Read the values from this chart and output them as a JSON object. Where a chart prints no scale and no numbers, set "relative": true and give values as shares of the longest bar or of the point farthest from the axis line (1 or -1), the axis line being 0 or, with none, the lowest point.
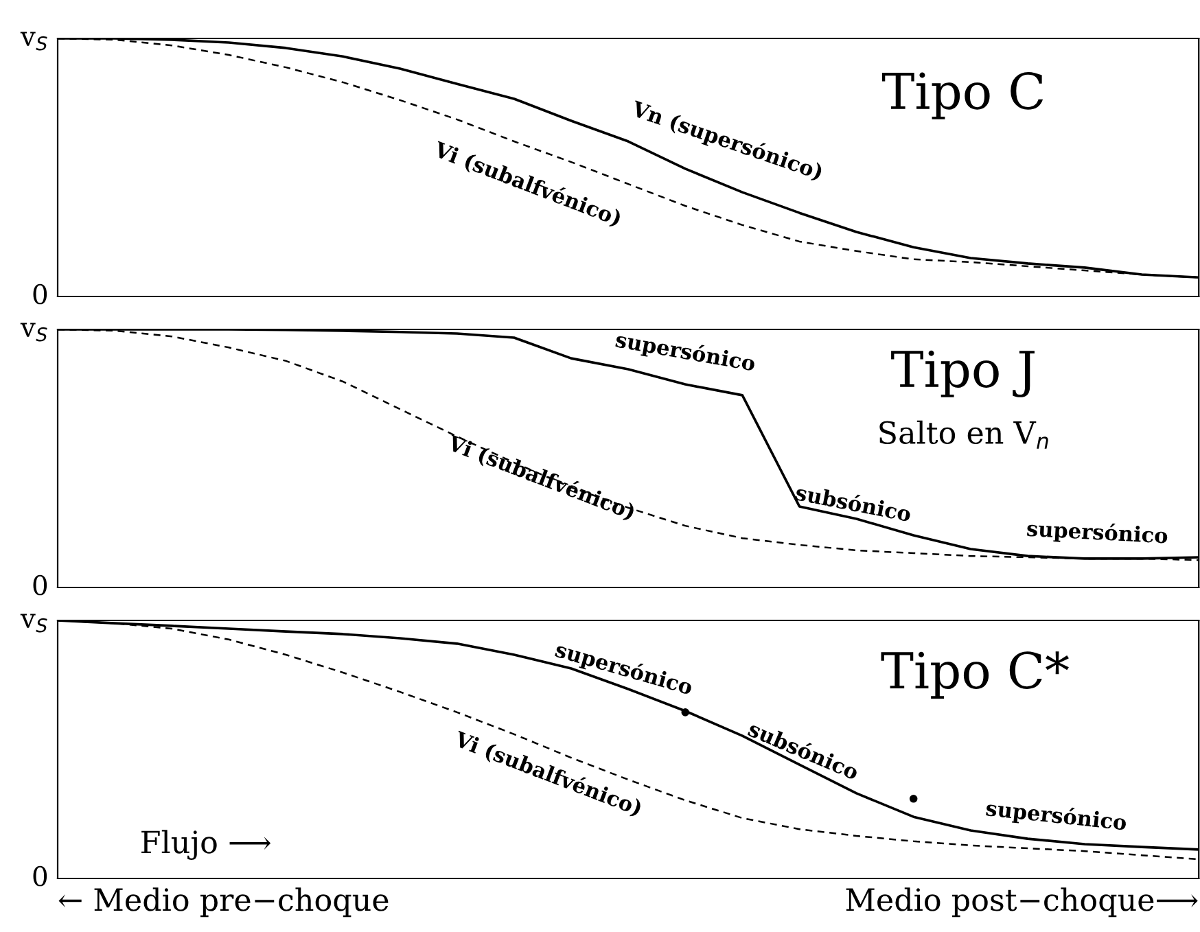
{
  "chart_data": [
    {
      "type": "line",
      "relative": true,
      "categories": [
        null,
        null,
        null,
        null,
        null,
        null,
        null,
        null,
        null,
        null,
        null,
        null,
        null,
        null,
        null,
        null,
        null,
        null,
        null,
        null,
        null
      ],
      "grid": false,
      "legend": false,
      "marker": "none",
      "series": [
        {
          "color": "#000000",
          "line_style": "solid",
          "values": [
            1.0,
            1.0,
            0.995,
            0.984,
            0.963,
            0.93,
            0.883,
            0.824,
            0.766,
            0.681,
            0.601,
            0.495,
            0.404,
            0.324,
            0.25,
            0.191,
            0.149,
            0.128,
            0.112,
            0.085,
            0.074
          ]
        },
        {
          "color": "#000000",
          "line_style": "dashed",
          "values": [
            1.0,
            0.995,
            0.973,
            0.936,
            0.888,
            0.83,
            0.761,
            0.686,
            0.601,
            0.521,
            0.436,
            0.351,
            0.277,
            0.213,
            0.176,
            0.144,
            0.133,
            0.117,
            0.101,
            0.085,
            0.074
          ]
        }
      ],
      "annotations": [
        "v$_{S}$",
        "0",
        "Tipo C",
        "Vn (supersónico)",
        "Vi (subalfvénico)"
      ]
    },
    {
      "type": "line",
      "relative": true,
      "categories": [
        null,
        null,
        null,
        null,
        null,
        null,
        null,
        null,
        null,
        null,
        null,
        null,
        null,
        null,
        null,
        null,
        null,
        null,
        null,
        null,
        null
      ],
      "grid": false,
      "legend": false,
      "marker": "none",
      "series": [
        {
          "color": "#000000",
          "line_style": "solid",
          "values": [
            1.0,
            1.0,
            1.0,
            1.0,
            0.998,
            0.995,
            0.99,
            0.984,
            0.968,
            0.888,
            0.846,
            0.787,
            0.745,
            0.314,
            0.266,
            0.202,
            0.149,
            0.122,
            0.112,
            0.112,
            0.117
          ]
        },
        {
          "color": "#000000",
          "line_style": "dashed",
          "values": [
            1.0,
            0.995,
            0.973,
            0.93,
            0.878,
            0.798,
            0.691,
            0.585,
            0.484,
            0.388,
            0.309,
            0.239,
            0.191,
            0.165,
            0.144,
            0.133,
            0.122,
            0.117,
            0.112,
            0.112,
            0.106
          ]
        }
      ],
      "annotations": [
        "v$_{S}$",
        "0",
        "Tipo J",
        "Salto en V$_{n}$",
        "supersónico",
        "Vi (subalfvénico)",
        "subsónico",
        "supersónico"
      ]
    },
    {
      "type": "line",
      "relative": true,
      "categories": [
        null,
        null,
        null,
        null,
        null,
        null,
        null,
        null,
        null,
        null,
        null,
        null,
        null,
        null,
        null,
        null,
        null,
        null,
        null,
        null,
        null
      ],
      "grid": false,
      "legend": false,
      "marker": "none",
      "series": [
        {
          "color": "#000000",
          "line_style": "solid",
          "values": [
            1.0,
            0.989,
            0.979,
            0.968,
            0.957,
            0.947,
            0.931,
            0.91,
            0.867,
            0.814,
            0.734,
            0.649,
            0.553,
            0.441,
            0.33,
            0.239,
            0.186,
            0.154,
            0.133,
            0.122,
            0.112
          ]
        },
        {
          "type": "scatter",
          "marker": "circle",
          "color": "#000000",
          "values": [
            null,
            null,
            null,
            null,
            null,
            null,
            null,
            null,
            null,
            null,
            null,
            0.644,
            null,
            null,
            null,
            0.309,
            null,
            null,
            null,
            null,
            null
          ]
        },
        {
          "color": "#000000",
          "line_style": "dashed",
          "values": [
            1.0,
            0.989,
            0.968,
            0.926,
            0.867,
            0.798,
            0.723,
            0.644,
            0.559,
            0.468,
            0.383,
            0.303,
            0.234,
            0.191,
            0.165,
            0.144,
            0.128,
            0.117,
            0.106,
            0.09,
            0.074
          ]
        }
      ],
      "annotations": [
        "v$_{S}$",
        "0",
        "Tipo C*",
        "Flujo ⟶",
        "← Medio pre−choque",
        "Medio post−choque⟶",
        "supersónico",
        "subsónico",
        "Vi (subalfvénico)",
        "supersónico"
      ]
    }
  ]
}
